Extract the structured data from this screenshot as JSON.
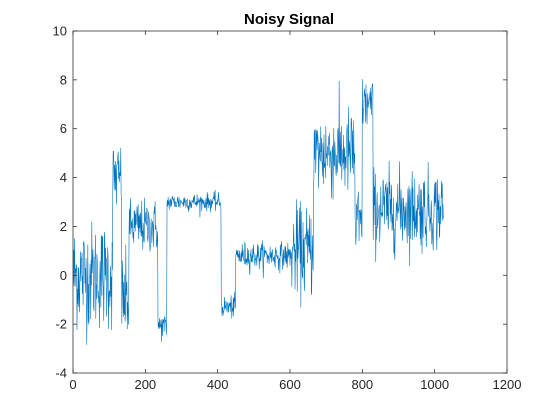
{
  "chart_data": {
    "type": "line",
    "title": "Noisy Signal",
    "xlabel": "",
    "ylabel": "",
    "xlim": [
      0,
      1200
    ],
    "ylim": [
      -4,
      10
    ],
    "xticks": [
      0,
      200,
      400,
      600,
      800,
      1000,
      1200
    ],
    "yticks": [
      -4,
      -2,
      0,
      2,
      4,
      6,
      8,
      10
    ],
    "grid": false,
    "legend": "none",
    "line_color": "#0072BD",
    "num_points": 1024,
    "segments": [
      {
        "x_start": 1,
        "x_end": 110,
        "level": 0,
        "noise": 1.2
      },
      {
        "x_start": 110,
        "x_end": 135,
        "level": 4,
        "noise": 0.8
      },
      {
        "x_start": 135,
        "x_end": 155,
        "level": -1,
        "noise": 1.0
      },
      {
        "x_start": 155,
        "x_end": 235,
        "level": 2,
        "noise": 0.6
      },
      {
        "x_start": 235,
        "x_end": 260,
        "level": -2.1,
        "noise": 0.3
      },
      {
        "x_start": 260,
        "x_end": 410,
        "level": 3,
        "noise": 0.2
      },
      {
        "x_start": 410,
        "x_end": 450,
        "level": -1.3,
        "noise": 0.25
      },
      {
        "x_start": 450,
        "x_end": 605,
        "level": 0.8,
        "noise": 0.3
      },
      {
        "x_start": 605,
        "x_end": 665,
        "level": 1,
        "noise": 1.0
      },
      {
        "x_start": 665,
        "x_end": 780,
        "level": 5,
        "noise": 1.0
      },
      {
        "x_start": 780,
        "x_end": 800,
        "level": 2,
        "noise": 1.0
      },
      {
        "x_start": 800,
        "x_end": 830,
        "level": 7,
        "noise": 0.6
      },
      {
        "x_start": 830,
        "x_end": 1024,
        "level": 2.7,
        "noise": 0.9
      }
    ]
  }
}
